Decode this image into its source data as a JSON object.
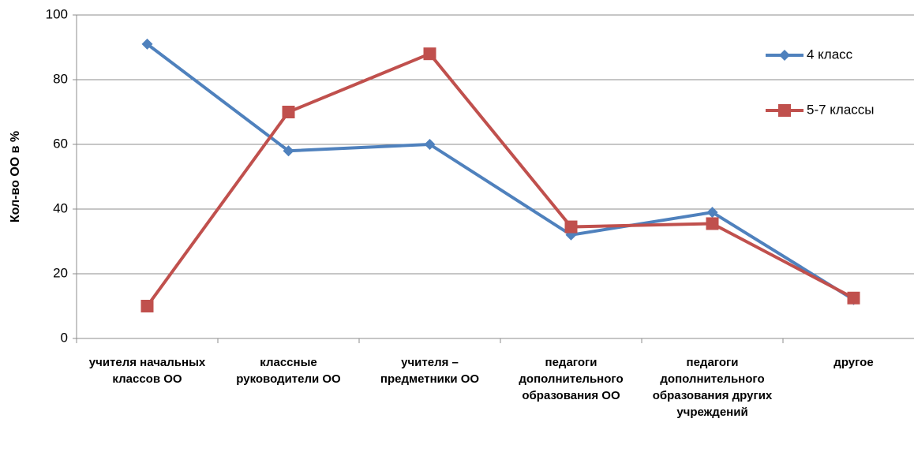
{
  "chart_data": {
    "type": "line",
    "y_label": "Кол-во ОО в %",
    "categories": [
      "учителя начальных классов ОО",
      "классные руководители ОО",
      "учителя – предметники ОО",
      "педагоги дополнительного образования ОО",
      "педагоги дополнительного образования других учреждений",
      "другое"
    ],
    "series": [
      {
        "name": "4 класс",
        "color": "#4f81bd",
        "marker": "diamond",
        "values": [
          91,
          58,
          60,
          32,
          39,
          12
        ]
      },
      {
        "name": "5-7 классы",
        "color": "#c0504d",
        "marker": "square",
        "values": [
          10,
          70,
          88,
          34.5,
          35.5,
          12.5
        ]
      }
    ],
    "ylim": [
      0,
      100
    ],
    "yticks": [
      0,
      20,
      40,
      60,
      80,
      100
    ],
    "grid": true,
    "legend": "right"
  }
}
